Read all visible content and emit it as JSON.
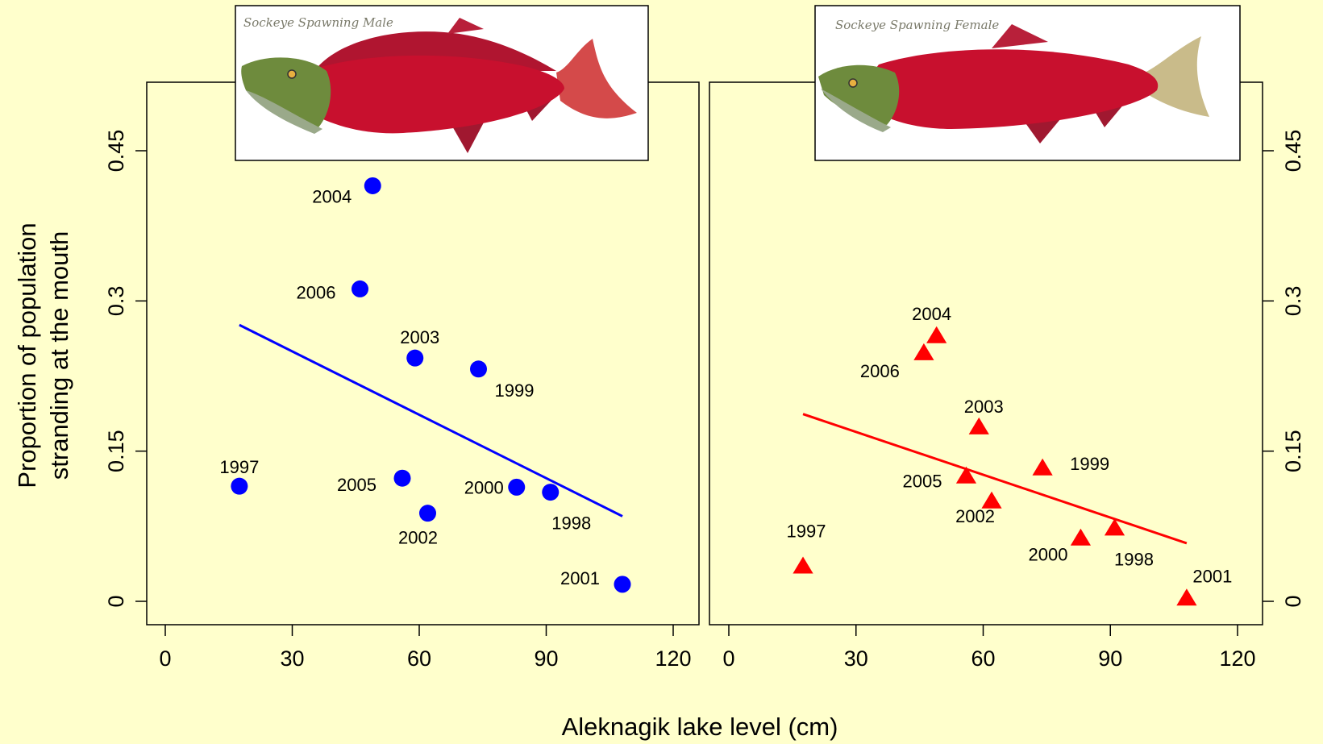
{
  "figure": {
    "xlabel": "Aleknagik lake level (cm)",
    "ylabel_lines": [
      "Proportion of population",
      "stranding at the mouth"
    ]
  },
  "colors": {
    "background": "#FFFFCC",
    "male": "#0000FF",
    "female": "#FF0000"
  },
  "chart_data": [
    {
      "type": "scatter",
      "panel": "left",
      "marker": "circle",
      "image_caption": "Sockeye Spawning Male",
      "xlim": [
        0,
        120
      ],
      "ylim": [
        0,
        0.45
      ],
      "xticks": [
        "0",
        "30",
        "60",
        "90",
        "120"
      ],
      "yticks": [
        "0",
        "0.15",
        "0.3",
        "0.45"
      ],
      "points": [
        {
          "label": "1997",
          "x": 17.5,
          "y": 0.115
        },
        {
          "label": "1998",
          "x": 91,
          "y": 0.109
        },
        {
          "label": "1999",
          "x": 74,
          "y": 0.232
        },
        {
          "label": "2000",
          "x": 83,
          "y": 0.114
        },
        {
          "label": "2001",
          "x": 108,
          "y": 0.017
        },
        {
          "label": "2002",
          "x": 62,
          "y": 0.088
        },
        {
          "label": "2003",
          "x": 59,
          "y": 0.243
        },
        {
          "label": "2004",
          "x": 49,
          "y": 0.415
        },
        {
          "label": "2005",
          "x": 56,
          "y": 0.123
        },
        {
          "label": "2006",
          "x": 46,
          "y": 0.312
        }
      ],
      "fit_line": {
        "x": [
          17.5,
          108
        ],
        "y": [
          0.276,
          0.085
        ]
      }
    },
    {
      "type": "scatter",
      "panel": "right",
      "marker": "triangle",
      "image_caption": "Sockeye Spawning Female",
      "xlim": [
        0,
        120
      ],
      "ylim": [
        0,
        0.45
      ],
      "xticks": [
        "0",
        "30",
        "60",
        "90",
        "120"
      ],
      "yticks": [
        "0",
        "0.15",
        "0.3",
        "0.45"
      ],
      "points": [
        {
          "label": "1997",
          "x": 17.5,
          "y": 0.035
        },
        {
          "label": "1998",
          "x": 91,
          "y": 0.073
        },
        {
          "label": "1999",
          "x": 74,
          "y": 0.133
        },
        {
          "label": "2000",
          "x": 83,
          "y": 0.063
        },
        {
          "label": "2001",
          "x": 108,
          "y": 0.003
        },
        {
          "label": "2002",
          "x": 62,
          "y": 0.1
        },
        {
          "label": "2003",
          "x": 59,
          "y": 0.174
        },
        {
          "label": "2004",
          "x": 49,
          "y": 0.265
        },
        {
          "label": "2005",
          "x": 56,
          "y": 0.125
        },
        {
          "label": "2006",
          "x": 46,
          "y": 0.248
        }
      ],
      "fit_line": {
        "x": [
          17.5,
          108
        ],
        "y": [
          0.187,
          0.058
        ]
      }
    }
  ]
}
